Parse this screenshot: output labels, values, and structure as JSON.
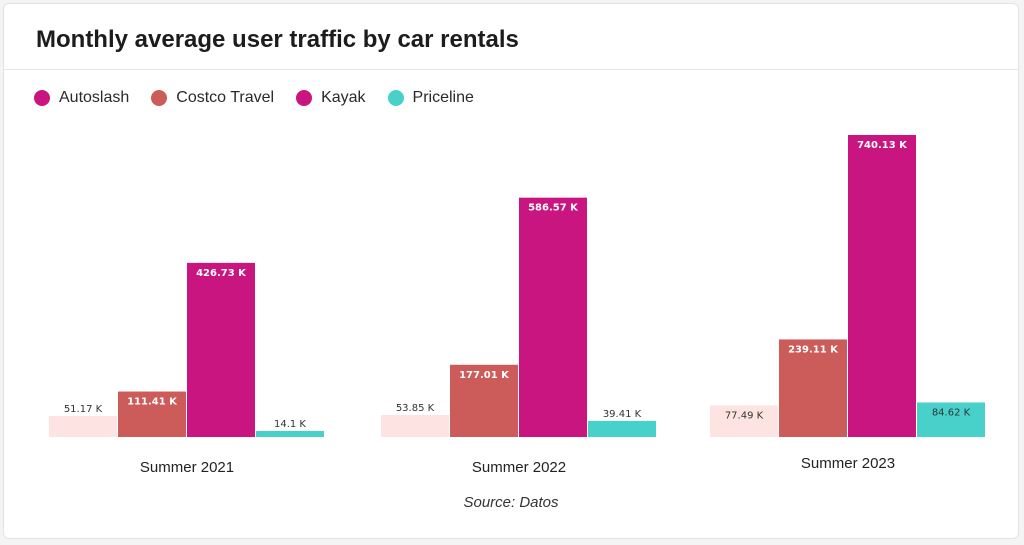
{
  "card": {
    "title": "Monthly average user traffic by car rentals",
    "source": "Source: Datos"
  },
  "chart_data": {
    "type": "bar",
    "title": "Monthly average user traffic by car rentals",
    "xlabel": "",
    "ylabel": "",
    "categories": [
      "Summer 2021",
      "Summer 2022",
      "Summer 2023"
    ],
    "series": [
      {
        "name": "Autoslash",
        "values": [
          51.17,
          53.85,
          77.49
        ],
        "labels": [
          "51.17 K",
          "53.85 K",
          "77.49 K"
        ],
        "color": "#c8157f",
        "bar_color": "#fde4e2",
        "label_color": "#333333"
      },
      {
        "name": "Costco Travel",
        "values": [
          111.41,
          177.01,
          239.11
        ],
        "labels": [
          "111.41 K",
          "177.01 K",
          "239.11 K"
        ],
        "color": "#cc5c59",
        "bar_color": "#cc5c59",
        "label_color": "#ffffff"
      },
      {
        "name": "Kayak",
        "values": [
          426.73,
          586.57,
          740.13
        ],
        "labels": [
          "426.73 K",
          "586.57 K",
          "740.13 K"
        ],
        "color": "#c8157f",
        "bar_color": "#c8157f",
        "label_color": "#ffffff"
      },
      {
        "name": "Priceline",
        "values": [
          14.1,
          39.41,
          84.62
        ],
        "labels": [
          "14.1 K",
          "39.41 K",
          "84.62 K"
        ],
        "color": "#48d0cb",
        "bar_color": "#48d0cb",
        "label_color": "#333333"
      }
    ],
    "units": "K",
    "ylim": [
      0,
      740.13
    ],
    "grid": false,
    "legend_position": "top-left",
    "source": "Source: Datos"
  }
}
